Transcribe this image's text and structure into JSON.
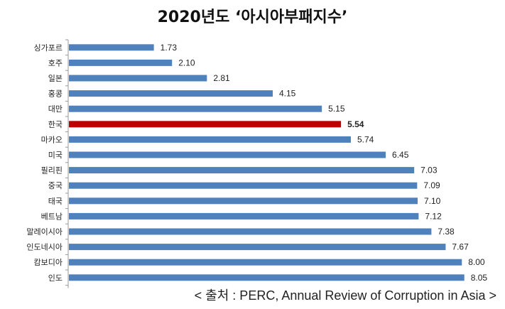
{
  "chart_data": {
    "type": "bar",
    "orientation": "horizontal",
    "title": "2020년도 ‘아시아부패지수’",
    "categories": [
      "싱가포르",
      "호주",
      "일본",
      "홍콩",
      "대만",
      "한국",
      "마카오",
      "미국",
      "필리핀",
      "중국",
      "태국",
      "베트남",
      "말레이시아",
      "인도네시아",
      "캄보디아",
      "인도"
    ],
    "values": [
      1.73,
      2.1,
      2.81,
      4.15,
      5.15,
      5.54,
      5.74,
      6.45,
      7.03,
      7.09,
      7.1,
      7.12,
      7.38,
      7.67,
      8.0,
      8.05
    ],
    "value_labels": [
      "1.73",
      "2.10",
      "2.81",
      "4.15",
      "5.15",
      "5.54",
      "5.74",
      "6.45",
      "7.03",
      "7.09",
      "7.10",
      "7.12",
      "7.38",
      "7.67",
      "8.00",
      "8.05"
    ],
    "highlight": "한국",
    "xlabel": "",
    "ylabel": "",
    "xlim": [
      0,
      8.3
    ],
    "grid": false,
    "legend": "none",
    "colors": {
      "bar": "#4F81BD",
      "highlight": "#C00000"
    }
  },
  "source": "< 출처 : PERC, Annual Review of Corruption in Asia >"
}
